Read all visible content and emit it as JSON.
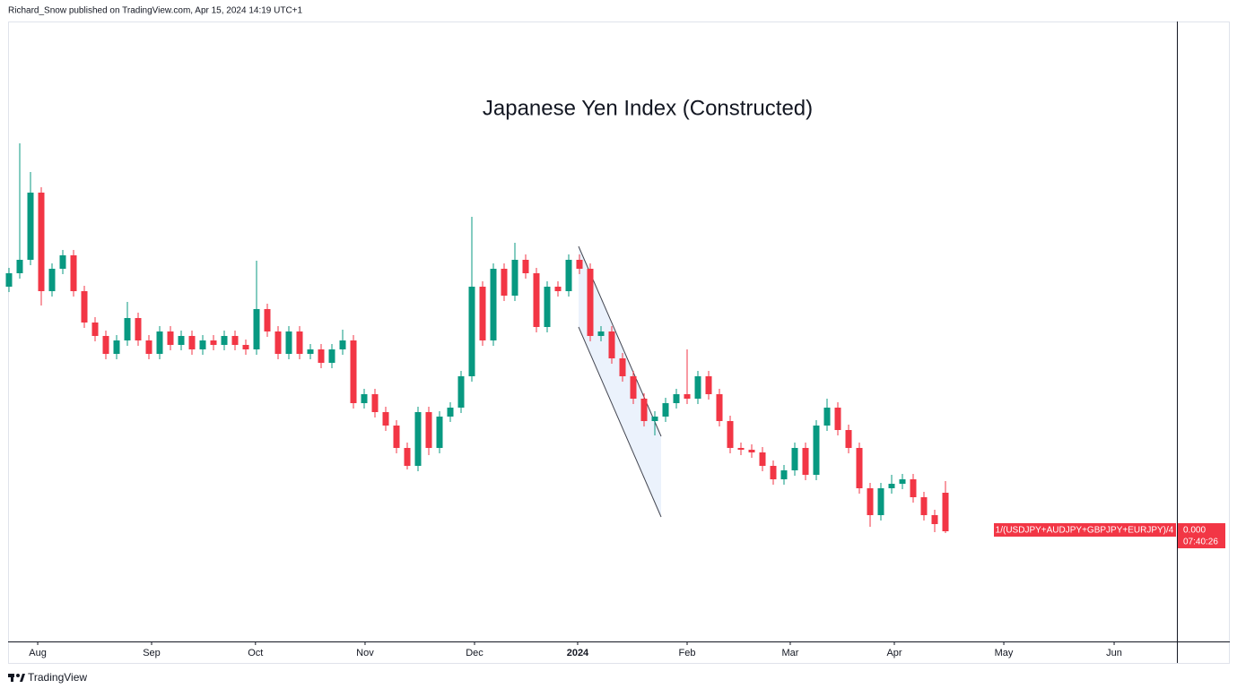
{
  "header": "Richard_Snow published on TradingView.com, Apr 15, 2024 14:19 UTC+1",
  "footer_brand": "TradingView",
  "chart_data": {
    "type": "candlestick",
    "title": "Japanese Yen Index (Constructed)",
    "up_color": "#089981",
    "down_color": "#f23645",
    "xlim": [
      0,
      108.5
    ],
    "xticks": [
      {
        "value": 2.67,
        "label": "Aug"
      },
      {
        "value": 13.25,
        "label": "Sep"
      },
      {
        "value": 22.9,
        "label": "Oct"
      },
      {
        "value": 33.08,
        "label": "Nov"
      },
      {
        "value": 43.25,
        "label": "Dec"
      },
      {
        "value": 52.83,
        "label": "2024"
      },
      {
        "value": 63,
        "label": "Feb"
      },
      {
        "value": 72.58,
        "label": "Mar"
      },
      {
        "value": 82.25,
        "label": "Apr"
      },
      {
        "value": 92.42,
        "label": "May"
      },
      {
        "value": 102.67,
        "label": "Jun"
      }
    ],
    "ylim": [
      0,
      69.2
    ],
    "series": [
      {
        "name": "1/(USDJPY+AUDJPY+GBPJPY+EURJPY)/4",
        "last_price": "0.000",
        "countdown": "07:40:26",
        "open": [
          39.6,
          41.1,
          42.6,
          50.1,
          39.1,
          41.6,
          43.1,
          39.1,
          35.6,
          34.1,
          32.1,
          33.6,
          36.1,
          33.6,
          32.1,
          34.6,
          33.1,
          34.1,
          32.6,
          33.6,
          33.1,
          34.1,
          33.1,
          32.6,
          37.1,
          34.6,
          32.1,
          34.6,
          32.1,
          32.6,
          31.1,
          32.6,
          33.6,
          26.6,
          27.6,
          25.6,
          24.1,
          21.6,
          19.6,
          25.6,
          21.6,
          25.1,
          26.1,
          29.6,
          39.6,
          33.6,
          41.6,
          38.6,
          42.6,
          41.1,
          35.1,
          39.6,
          39.1,
          42.6,
          41.6,
          34.1,
          34.6,
          31.6,
          29.6,
          27.1,
          24.6,
          25.1,
          26.6,
          27.6,
          27.1,
          29.6,
          27.6,
          24.6,
          21.6,
          21.4,
          21.1,
          19.6,
          18.1,
          19.1,
          21.6,
          18.6,
          24.1,
          26.1,
          23.6,
          21.6,
          17.1,
          14.1,
          17.1,
          17.6,
          18.1,
          16.1,
          14.1,
          16.6
        ],
        "high": [
          41.7,
          55.6,
          52.4,
          50.7,
          42.2,
          43.7,
          43.7,
          39.7,
          36.2,
          34.7,
          34.2,
          37.9,
          36.7,
          34.2,
          35.2,
          35.2,
          34.7,
          34.7,
          34.2,
          34.2,
          34.7,
          34.7,
          33.7,
          42.5,
          37.7,
          35.2,
          35.2,
          35.2,
          33.2,
          33.2,
          33.2,
          34.8,
          34.2,
          28.2,
          28.2,
          26.2,
          24.7,
          22.2,
          26.2,
          26.2,
          25.7,
          26.7,
          30.2,
          47.4,
          40.2,
          42.2,
          42.2,
          44.5,
          43.2,
          41.7,
          40.2,
          40.2,
          43.2,
          43.2,
          42.2,
          35.2,
          35.2,
          32.2,
          30.2,
          27.7,
          25.7,
          27.2,
          28.2,
          32.6,
          30.2,
          30.2,
          28.2,
          25.2,
          22.2,
          22.0,
          21.7,
          20.2,
          19.7,
          22.2,
          22.2,
          24.7,
          27.1,
          26.7,
          24.2,
          22.2,
          17.7,
          17.7,
          18.6,
          18.7,
          18.7,
          16.7,
          14.7,
          17.9
        ],
        "low": [
          39.0,
          40.5,
          42.0,
          37.5,
          38.5,
          41.0,
          38.5,
          35.0,
          33.5,
          31.5,
          31.5,
          33.0,
          33.0,
          31.5,
          31.5,
          32.5,
          32.5,
          32.0,
          32.0,
          32.5,
          32.5,
          32.5,
          32.0,
          32.0,
          34.0,
          31.5,
          31.5,
          31.5,
          31.5,
          30.5,
          30.5,
          32.0,
          26.0,
          26.0,
          25.0,
          23.5,
          21.0,
          19.2,
          19.0,
          20.8,
          21.0,
          24.5,
          25.5,
          29.0,
          33.0,
          33.0,
          38.0,
          38.0,
          40.5,
          34.5,
          34.5,
          38.5,
          38.5,
          41.0,
          33.5,
          33.5,
          31.0,
          29.0,
          26.5,
          24.0,
          23.0,
          24.5,
          26.0,
          26.5,
          26.5,
          27.0,
          24.0,
          21.0,
          20.8,
          20.5,
          19.0,
          17.5,
          17.5,
          18.5,
          18.0,
          18.0,
          23.5,
          23.0,
          21.0,
          16.5,
          12.8,
          13.5,
          16.5,
          17.0,
          15.5,
          13.5,
          12.2,
          12.1
        ],
        "close": [
          41.1,
          42.6,
          50.1,
          39.1,
          41.6,
          43.1,
          39.1,
          35.6,
          34.1,
          32.1,
          33.6,
          36.1,
          33.6,
          32.1,
          34.6,
          33.1,
          34.1,
          32.6,
          33.6,
          33.1,
          34.1,
          33.1,
          32.6,
          37.1,
          34.6,
          32.1,
          34.6,
          32.1,
          32.6,
          31.1,
          32.6,
          33.6,
          26.6,
          27.6,
          25.6,
          24.1,
          21.6,
          19.6,
          25.6,
          21.6,
          25.1,
          26.1,
          29.6,
          39.6,
          33.6,
          41.6,
          38.6,
          42.6,
          41.1,
          35.1,
          39.6,
          39.1,
          42.6,
          41.6,
          34.1,
          34.6,
          31.6,
          29.6,
          27.1,
          24.6,
          25.1,
          26.6,
          27.6,
          27.1,
          29.6,
          27.6,
          24.6,
          21.6,
          21.4,
          21.1,
          19.6,
          18.1,
          19.1,
          21.6,
          18.6,
          24.1,
          26.1,
          23.6,
          21.6,
          17.1,
          14.1,
          17.1,
          17.6,
          18.1,
          16.1,
          14.1,
          13.1,
          12.3
        ]
      }
    ]
  }
}
